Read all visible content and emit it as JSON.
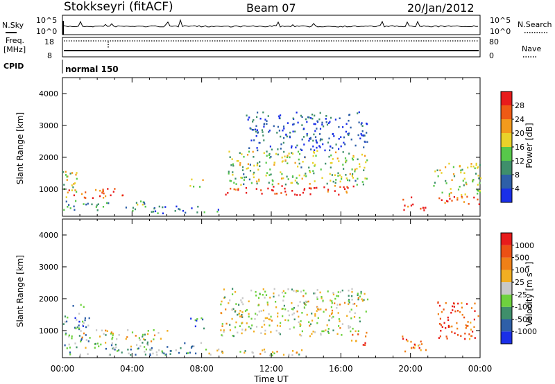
{
  "header": {
    "station": "Stokkseyri (fitACF)",
    "beam": "Beam 07",
    "date": "20/Jan/2012"
  },
  "panels": {
    "nsky_label": "N.Sky",
    "nsearch_label": "N.Search",
    "freq_label_1": "Freq.",
    "freq_label_2": "[MHz]",
    "nave_label": "Nave",
    "cpid_label": "CPID",
    "cpid_value": "normal 150",
    "noise_ticks": [
      "10^5",
      "10^0"
    ],
    "freq_ticks": [
      "18",
      "8"
    ],
    "nave_ticks": [
      "80",
      "0"
    ]
  },
  "chart_data": [
    {
      "type": "heatmap",
      "title": "",
      "xlabel": "",
      "ylabel": "Slant Range [km]",
      "x_ticks": [
        "00:00",
        "04:00",
        "08:00",
        "12:00",
        "16:00",
        "20:00",
        "00:00"
      ],
      "y_ticks": [
        "1000",
        "2000",
        "3000",
        "4000"
      ],
      "colorbar_label": "Power [dB]",
      "colorbar_ticks": [
        "4",
        "8",
        "12",
        "16",
        "20",
        "24",
        "28"
      ],
      "colorbar_colors": [
        "#1a2fe8",
        "#2e5fa8",
        "#3f8f6b",
        "#57c84a",
        "#e9d22a",
        "#f39a1c",
        "#ef5a14",
        "#e81b1b"
      ],
      "regions": [
        {
          "t0": 0.0,
          "t1": 0.9,
          "r0": 600,
          "r1": 1700,
          "level": 0.55
        },
        {
          "t0": 0.3,
          "t1": 3.5,
          "r0": 700,
          "r1": 1000,
          "level": 0.85
        },
        {
          "t0": 0.0,
          "t1": 4.8,
          "r0": 300,
          "r1": 600,
          "level": 0.35
        },
        {
          "t0": 7.3,
          "t1": 8.1,
          "r0": 1000,
          "r1": 1400,
          "level": 0.5
        },
        {
          "t0": 9.3,
          "t1": 17.0,
          "r0": 800,
          "r1": 1100,
          "level": 0.95
        },
        {
          "t0": 9.5,
          "t1": 17.5,
          "r0": 1100,
          "r1": 2200,
          "level": 0.45
        },
        {
          "t0": 10.5,
          "t1": 17.5,
          "r0": 2200,
          "r1": 3400,
          "level": 0.15
        },
        {
          "t0": 19.5,
          "t1": 20.9,
          "r0": 300,
          "r1": 800,
          "level": 0.95
        },
        {
          "t0": 21.5,
          "t1": 24.0,
          "r0": 500,
          "r1": 800,
          "level": 0.9
        },
        {
          "t0": 21.2,
          "t1": 24.0,
          "r0": 800,
          "r1": 1800,
          "level": 0.5
        },
        {
          "t0": 5.0,
          "t1": 9.0,
          "r0": 200,
          "r1": 450,
          "level": 0.2
        }
      ]
    },
    {
      "type": "heatmap",
      "title": "",
      "xlabel": "Time UT",
      "ylabel": "Slant Range [km]",
      "x_ticks": [
        "00:00",
        "04:00",
        "08:00",
        "12:00",
        "16:00",
        "20:00",
        "00:00"
      ],
      "y_ticks": [
        "1000",
        "2000",
        "3000",
        "4000"
      ],
      "colorbar_label": "Velocity [m s⁻¹]",
      "colorbar_ticks": [
        "1000",
        "500",
        "100",
        "25",
        "-25",
        "-100",
        "-500",
        "-1000"
      ],
      "colorbar_colors": [
        "#1a2fe8",
        "#2e5fa8",
        "#3f8f6b",
        "#6ed23e",
        "#c8c8c8",
        "#f2ae22",
        "#f08018",
        "#ec5014",
        "#e81b1b"
      ],
      "regions": [
        {
          "t0": 0.0,
          "t1": 1.5,
          "r0": 600,
          "r1": 1800,
          "level": 0.3
        },
        {
          "t0": 1.0,
          "t1": 6.0,
          "r0": 600,
          "r1": 1000,
          "level": 0.5
        },
        {
          "t0": 0.0,
          "t1": 8.0,
          "r0": 200,
          "r1": 600,
          "level": 0.35
        },
        {
          "t0": 7.3,
          "t1": 8.1,
          "r0": 1000,
          "r1": 1400,
          "level": 0.2
        },
        {
          "t0": 9.0,
          "t1": 17.5,
          "r0": 800,
          "r1": 2300,
          "level": 0.5
        },
        {
          "t0": 16.5,
          "t1": 17.5,
          "r0": 500,
          "r1": 1000,
          "level": 0.72
        },
        {
          "t0": 19.5,
          "t1": 20.9,
          "r0": 300,
          "r1": 800,
          "level": 0.75
        },
        {
          "t0": 21.5,
          "t1": 24.0,
          "r0": 700,
          "r1": 1900,
          "level": 0.85
        },
        {
          "t0": 8.0,
          "t1": 14.0,
          "r0": 200,
          "r1": 400,
          "level": 0.5
        }
      ]
    }
  ]
}
